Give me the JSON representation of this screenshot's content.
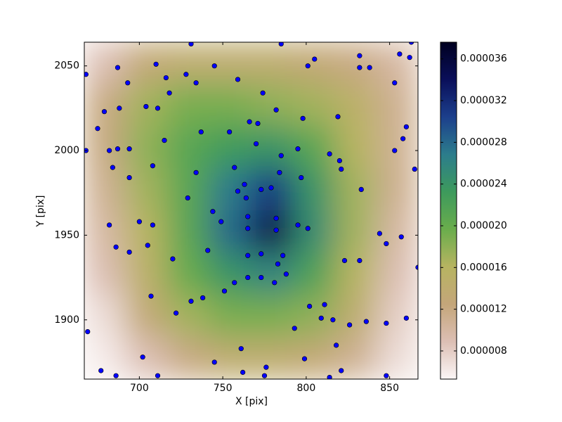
{
  "chart_data": {
    "type": "heatmap",
    "xlabel": "X [pix]",
    "ylabel": "Y [pix]",
    "xlim": [
      667,
      867
    ],
    "ylim": [
      1865,
      2064
    ],
    "xticks": [
      700,
      750,
      800,
      850
    ],
    "yticks": [
      1900,
      1950,
      2000,
      2050
    ],
    "z": [
      [
        9e-06,
        1.3e-05,
        1.4e-05,
        1.4e-05,
        1.4e-05,
        1.3e-05,
        1.2e-05,
        1e-05
      ],
      [
        1.2e-05,
        1.7e-05,
        1.9e-05,
        1.9e-05,
        1.8e-05,
        1.7e-05,
        1.5e-05,
        1.1e-05
      ],
      [
        1.2e-05,
        1.8e-05,
        2.1e-05,
        2.3e-05,
        2.4e-05,
        2.1e-05,
        1.6e-05,
        1.1e-05
      ],
      [
        1.1e-05,
        1.7e-05,
        2.1e-05,
        2.7e-05,
        3.1e-05,
        2.4e-05,
        1.7e-05,
        1.1e-05
      ],
      [
        1e-05,
        1.6e-05,
        2.1e-05,
        2.8e-05,
        3.5e-05,
        2.5e-05,
        1.7e-05,
        1e-05
      ],
      [
        9e-06,
        1.5e-05,
        2e-05,
        2.4e-05,
        2.6e-05,
        2.2e-05,
        1.6e-05,
        9e-06
      ],
      [
        7e-06,
        1.3e-05,
        1.7e-05,
        1.9e-05,
        1.9e-05,
        1.8e-05,
        1.4e-05,
        8e-06
      ],
      [
        6e-06,
        9e-06,
        1.2e-05,
        1.4e-05,
        1.4e-05,
        1.3e-05,
        1.1e-05,
        7e-06
      ]
    ],
    "colormap": [
      "#fbf6f6",
      "#dcbfb4",
      "#c4a67a",
      "#b7b461",
      "#6aad4c",
      "#3d9a5c",
      "#2c7d8c",
      "#1c3f8c",
      "#0a0f5a",
      "#000020"
    ],
    "clim": [
      5.3e-06,
      3.76e-05
    ],
    "cticks": [
      {
        "value": 8e-06,
        "label": "0.000008"
      },
      {
        "value": 1.2e-05,
        "label": "0.000012"
      },
      {
        "value": 1.6e-05,
        "label": "0.000016"
      },
      {
        "value": 2e-05,
        "label": "0.000020"
      },
      {
        "value": 2.4e-05,
        "label": "0.000024"
      },
      {
        "value": 2.8e-05,
        "label": "0.000028"
      },
      {
        "value": 3.2e-05,
        "label": "0.000032"
      },
      {
        "value": 3.6e-05,
        "label": "0.000036"
      }
    ],
    "points": {
      "color": "#0000ff",
      "x": [
        668,
        668,
        669,
        675,
        679,
        677,
        682,
        684,
        682,
        686,
        686,
        687,
        688,
        687,
        693,
        694,
        694,
        694,
        700,
        704,
        705,
        702,
        707,
        708,
        708,
        710,
        711,
        711,
        715,
        716,
        718,
        720,
        722,
        728,
        729,
        731,
        731,
        734,
        734,
        737,
        738,
        741,
        744,
        745,
        745,
        749,
        751,
        754,
        757,
        757,
        759,
        761,
        762,
        759,
        763,
        764,
        765,
        765,
        765,
        765,
        766,
        770,
        771,
        773,
        773,
        773,
        774,
        775,
        776,
        779,
        782,
        782,
        781,
        782,
        783,
        784,
        785,
        785,
        786,
        788,
        795,
        795,
        797,
        798,
        793,
        799,
        801,
        801,
        805,
        802,
        809,
        811,
        814,
        814,
        816,
        818,
        819,
        820,
        821,
        821,
        823,
        826,
        832,
        832,
        832,
        833,
        836,
        838,
        844,
        848,
        848,
        848,
        853,
        853,
        856,
        857,
        858,
        860,
        860,
        862,
        863,
        865,
        867
      ],
      "y": [
        2045,
        2000,
        1893,
        2013,
        2023,
        1870,
        2000,
        1990,
        1956,
        1943,
        1867,
        2049,
        2025,
        2001,
        2040,
        2001,
        1984,
        1940,
        1958,
        2026,
        1944,
        1878,
        1914,
        1991,
        1956,
        2051,
        2025,
        1867,
        2006,
        2043,
        2034,
        1936,
        1904,
        2045,
        1972,
        2063,
        1911,
        2040,
        1987,
        2011,
        1913,
        1941,
        1964,
        2050,
        1875,
        1958,
        1917,
        2011,
        1990,
        1922,
        2042,
        1883,
        1869,
        1976,
        1980,
        1972,
        1961,
        1954,
        1938,
        1925,
        2017,
        2004,
        2016,
        1977,
        1939,
        1925,
        2034,
        1867,
        1872,
        1978,
        1960,
        1953,
        1922,
        2024,
        1933,
        1987,
        1997,
        2063,
        1938,
        1927,
        2001,
        1956,
        1984,
        2019,
        1895,
        1877,
        1954,
        2050,
        2054,
        1908,
        1901,
        1909,
        1998,
        1866,
        1900,
        1885,
        2020,
        1994,
        1989,
        1870,
        1935,
        1897,
        2056,
        2049,
        1935,
        1977,
        1899,
        2049,
        1951,
        1945,
        1867,
        1898,
        2040,
        2000,
        2057,
        1949,
        2007,
        2014,
        1901,
        2055,
        2064,
        1989,
        1931
      ]
    }
  }
}
